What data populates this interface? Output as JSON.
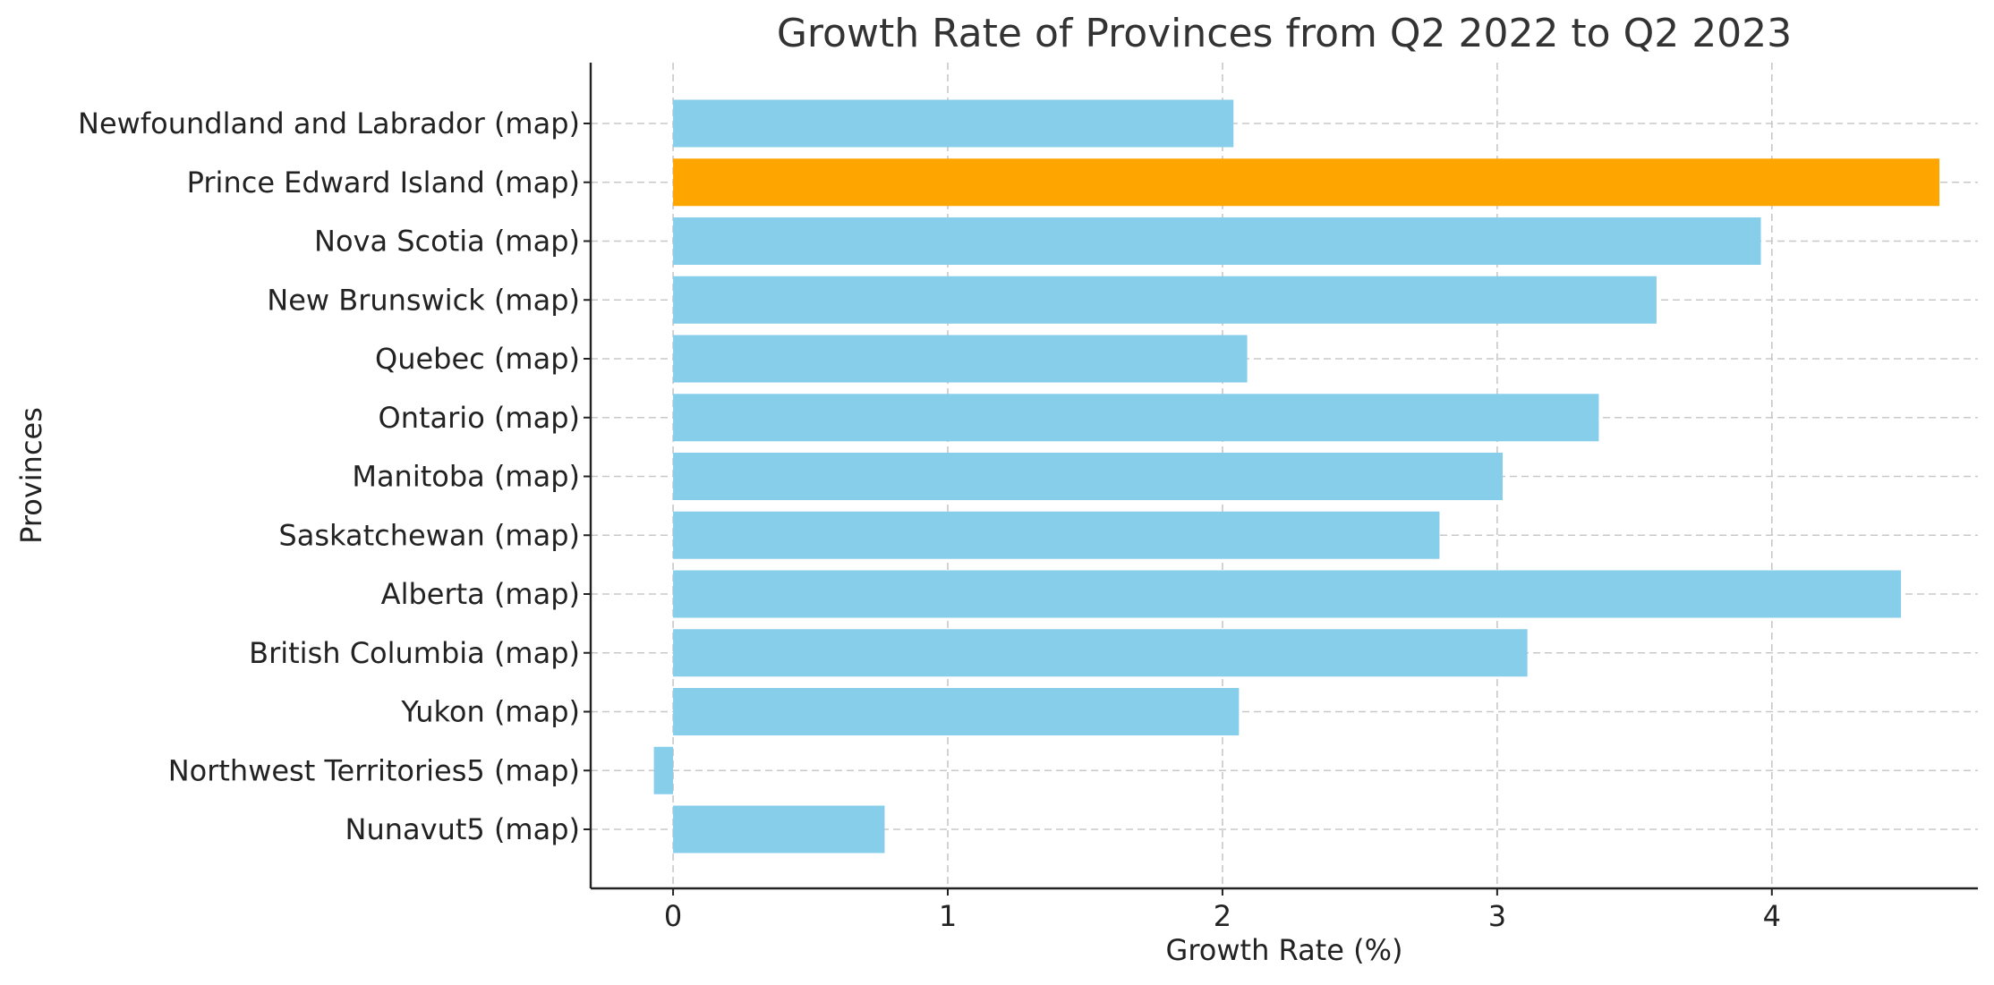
{
  "chart_data": {
    "type": "bar",
    "orientation": "horizontal",
    "title": "Growth Rate of Provinces from Q2 2022 to Q2 2023",
    "xlabel": "Growth Rate (%)",
    "ylabel": "Provinces",
    "xlim": [
      -0.3,
      4.75
    ],
    "xticks": [
      0,
      1,
      2,
      3,
      4
    ],
    "grid": true,
    "categories": [
      "Newfoundland and Labrador (map)",
      "Prince Edward Island (map)",
      "Nova Scotia (map)",
      "New Brunswick (map)",
      "Quebec (map)",
      "Ontario (map)",
      "Manitoba (map)",
      "Saskatchewan (map)",
      "Alberta (map)",
      "British Columbia (map)",
      "Yukon (map)",
      "Northwest Territories5 (map)",
      "Nunavut5 (map)"
    ],
    "values": [
      2.04,
      4.61,
      3.96,
      3.58,
      2.09,
      3.37,
      3.02,
      2.79,
      4.47,
      3.11,
      2.06,
      -0.07,
      0.77
    ],
    "colors": {
      "default": "#87CEEB",
      "highlight": "#FFA500"
    },
    "highlight_category": "Prince Edward Island (map)"
  }
}
